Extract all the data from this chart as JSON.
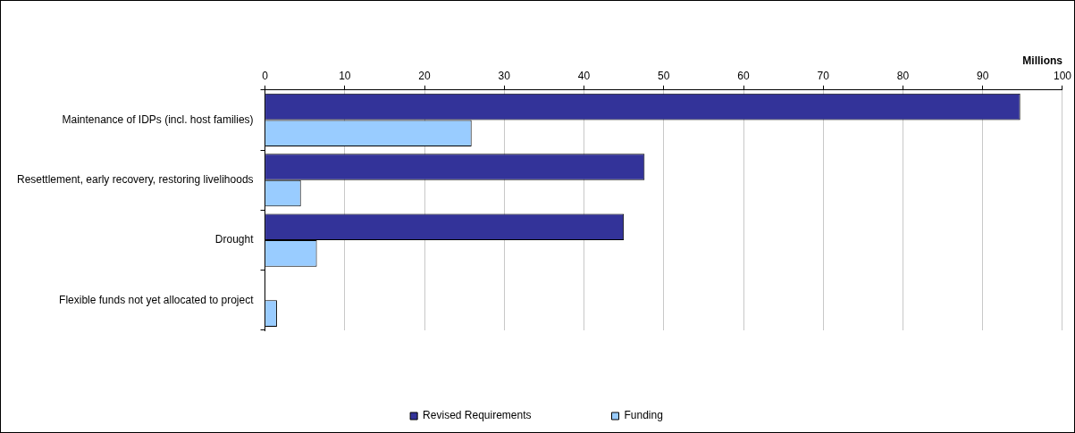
{
  "chart_data": {
    "type": "bar",
    "orientation": "horizontal",
    "xlabel": "Millions",
    "categories": [
      "Maintenance of IDPs (incl. host families)",
      "Resettlement, early recovery, restoring livelihoods",
      "Drought",
      "Flexible funds not yet allocated to project"
    ],
    "series": [
      {
        "name": "Revised Requirements",
        "color": "#333399",
        "values": [
          94.7,
          47.6,
          45.0,
          null
        ]
      },
      {
        "name": "Funding",
        "color": "#99ccff",
        "values": [
          25.9,
          4.5,
          6.5,
          1.5
        ]
      }
    ],
    "xlim": [
      0,
      100
    ],
    "xticks": [
      0,
      10,
      20,
      30,
      40,
      50,
      60,
      70,
      80,
      90,
      100
    ],
    "grid": "x",
    "legend": "bottom"
  }
}
